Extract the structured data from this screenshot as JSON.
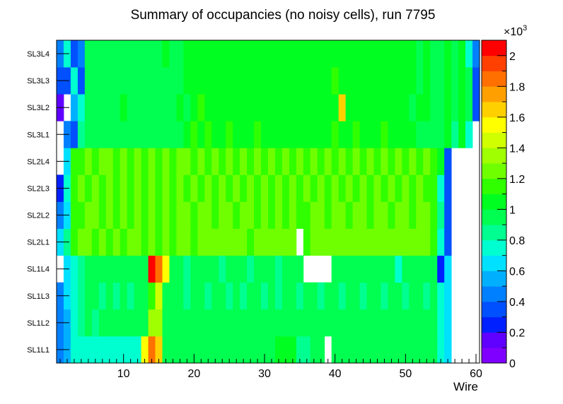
{
  "chart_data": {
    "type": "heatmap",
    "title": "Summary of occupancies (no noisy cells), run 7795",
    "xlabel": "Wire",
    "ylabel": "",
    "xlim": [
      0.5,
      60.5
    ],
    "x_ticks": [
      10,
      20,
      30,
      40,
      50,
      60
    ],
    "y_categories": [
      "SL1L1",
      "SL1L2",
      "SL1L3",
      "SL1L4",
      "SL2L1",
      "SL2L2",
      "SL2L3",
      "SL2L4",
      "SL3L1",
      "SL3L2",
      "SL3L3",
      "SL3L4"
    ],
    "z_range": [
      0,
      2100
    ],
    "colorbar": {
      "ticks": [
        0,
        200,
        400,
        600,
        800,
        1000,
        1200,
        1400,
        1600,
        1800,
        2000
      ],
      "tick_labels": [
        "0",
        "0.2",
        "0.4",
        "0.6",
        "0.8",
        "1",
        "1.2",
        "1.4",
        "1.6",
        "1.8",
        "2"
      ],
      "exponent_label": "×10",
      "exponent_power": "3",
      "palette": [
        "#8000ff",
        "#6000ff",
        "#0020ff",
        "#0050ff",
        "#0080ff",
        "#00b0ff",
        "#00e0ff",
        "#00ffd0",
        "#00ff90",
        "#00ff50",
        "#00ff20",
        "#30ff00",
        "#70ff00",
        "#a0ff00",
        "#d0ff00",
        "#ffff00",
        "#ffd000",
        "#ffa000",
        "#ff7000",
        "#ff4000",
        "#ff0000"
      ]
    },
    "rows": [
      {
        "layer": "SL1L1",
        "values": [
          450,
          550,
          700,
          780,
          780,
          780,
          780,
          780,
          780,
          780,
          780,
          780,
          1500,
          1850,
          1650,
          960,
          900,
          940,
          900,
          900,
          900,
          960,
          900,
          900,
          960,
          900,
          900,
          900,
          960,
          900,
          940,
          1000,
          1000,
          1040,
          820,
          820,
          900,
          960,
          0,
          900,
          900,
          900,
          940,
          900,
          940,
          900,
          940,
          900,
          960,
          900,
          940,
          940,
          960,
          960,
          700,
          600,
          0,
          0,
          0,
          0
        ]
      },
      {
        "layer": "SL1L2",
        "values": [
          450,
          550,
          700,
          850,
          900,
          850,
          900,
          900,
          900,
          900,
          900,
          900,
          900,
          1300,
          1350,
          960,
          900,
          900,
          900,
          960,
          900,
          900,
          900,
          960,
          900,
          900,
          900,
          960,
          900,
          900,
          900,
          960,
          900,
          960,
          900,
          900,
          900,
          900,
          900,
          900,
          900,
          900,
          900,
          900,
          900,
          900,
          900,
          900,
          900,
          940,
          900,
          900,
          900,
          920,
          700,
          650,
          0,
          0,
          0,
          0
        ]
      },
      {
        "layer": "SL1L3",
        "values": [
          450,
          600,
          700,
          850,
          900,
          900,
          880,
          900,
          880,
          900,
          880,
          900,
          900,
          1150,
          1400,
          900,
          900,
          900,
          880,
          900,
          900,
          880,
          900,
          900,
          880,
          900,
          880,
          900,
          900,
          880,
          900,
          880,
          900,
          900,
          880,
          900,
          900,
          880,
          900,
          900,
          880,
          900,
          900,
          880,
          900,
          900,
          880,
          900,
          900,
          880,
          900,
          900,
          880,
          900,
          700,
          650,
          0,
          0,
          0,
          0
        ]
      },
      {
        "layer": "SL1L4",
        "values": [
          0,
          600,
          700,
          850,
          900,
          900,
          900,
          900,
          900,
          900,
          900,
          900,
          900,
          2000,
          1800,
          1550,
          900,
          900,
          880,
          900,
          900,
          900,
          900,
          880,
          900,
          900,
          900,
          860,
          900,
          900,
          900,
          860,
          900,
          900,
          900,
          0,
          0,
          0,
          0,
          900,
          900,
          900,
          900,
          900,
          900,
          900,
          900,
          900,
          760,
          900,
          900,
          900,
          900,
          900,
          200,
          650,
          0,
          0,
          0,
          0
        ]
      },
      {
        "layer": "SL2L1",
        "values": [
          650,
          800,
          1150,
          1200,
          1200,
          1150,
          1200,
          1150,
          1200,
          1150,
          1200,
          1200,
          1150,
          1200,
          1150,
          1200,
          1150,
          1200,
          1200,
          1150,
          1200,
          1200,
          1200,
          1200,
          1200,
          1200,
          1200,
          1150,
          1200,
          1200,
          1200,
          1200,
          1200,
          1200,
          0,
          1100,
          1200,
          1200,
          1200,
          1200,
          1200,
          1200,
          1200,
          1200,
          1200,
          1200,
          1200,
          1200,
          1200,
          1200,
          1200,
          1200,
          1200,
          1150,
          700,
          300,
          0,
          0,
          0,
          0
        ]
      },
      {
        "layer": "SL2L2",
        "values": [
          450,
          650,
          1100,
          1150,
          1200,
          1200,
          1150,
          1200,
          1100,
          1200,
          1150,
          1200,
          1150,
          1200,
          1150,
          1200,
          1150,
          1200,
          1200,
          1150,
          1200,
          1200,
          1150,
          1200,
          1200,
          1150,
          1200,
          1200,
          1150,
          1200,
          1150,
          1200,
          1150,
          1200,
          1100,
          1150,
          1200,
          1200,
          1150,
          1200,
          1200,
          1150,
          1200,
          1200,
          1150,
          1200,
          1200,
          1150,
          1200,
          1200,
          1150,
          1200,
          1200,
          1150,
          800,
          300,
          0,
          0,
          0,
          0
        ]
      },
      {
        "layer": "SL2L3",
        "values": [
          200,
          700,
          1100,
          1200,
          1150,
          1200,
          1150,
          1200,
          1150,
          1200,
          1150,
          1200,
          1150,
          1200,
          1150,
          1200,
          1150,
          1200,
          1150,
          1200,
          1150,
          1200,
          1150,
          1200,
          1150,
          1200,
          1150,
          1200,
          1150,
          1200,
          1150,
          1200,
          1150,
          1200,
          1150,
          1200,
          1150,
          1200,
          1150,
          1200,
          1150,
          1200,
          1150,
          1200,
          1150,
          1200,
          1150,
          1200,
          1150,
          1200,
          1150,
          1200,
          1150,
          1100,
          700,
          300,
          0,
          0,
          0,
          0
        ]
      },
      {
        "layer": "SL2L4",
        "values": [
          0,
          600,
          1100,
          1150,
          1200,
          1150,
          1200,
          1200,
          1150,
          1200,
          1150,
          1200,
          1150,
          1200,
          1150,
          1200,
          1150,
          1200,
          1200,
          1150,
          1200,
          1150,
          1200,
          1150,
          1200,
          1150,
          1200,
          1150,
          1200,
          1150,
          1200,
          1150,
          1200,
          1150,
          1200,
          1150,
          1200,
          1150,
          1200,
          1150,
          1200,
          1150,
          1200,
          1150,
          1200,
          1150,
          1200,
          1150,
          1200,
          1150,
          1200,
          1150,
          1200,
          1150,
          1000,
          350,
          0,
          0,
          0,
          0
        ]
      },
      {
        "layer": "SL3L1",
        "values": [
          0,
          450,
          300,
          800,
          900,
          900,
          950,
          900,
          900,
          900,
          950,
          900,
          900,
          950,
          900,
          900,
          950,
          900,
          1000,
          1100,
          1000,
          1100,
          1000,
          1000,
          1100,
          1000,
          1000,
          1000,
          1100,
          1000,
          1000,
          1000,
          1000,
          1000,
          1000,
          1000,
          1000,
          1000,
          1000,
          1100,
          1000,
          1000,
          1100,
          1000,
          1000,
          1000,
          1100,
          1000,
          1000,
          1000,
          1000,
          900,
          900,
          900,
          900,
          1000,
          800,
          1000,
          700,
          0
        ]
      },
      {
        "layer": "SL3L2",
        "values": [
          150,
          0,
          500,
          700,
          900,
          900,
          950,
          900,
          900,
          1000,
          900,
          900,
          900,
          950,
          900,
          950,
          900,
          1000,
          950,
          1000,
          1100,
          1000,
          1000,
          1000,
          1000,
          1000,
          1000,
          1000,
          1000,
          1000,
          1000,
          1000,
          1000,
          1000,
          1000,
          1000,
          1000,
          1000,
          1000,
          1000,
          1600,
          1050,
          1000,
          1000,
          1000,
          1000,
          1000,
          1000,
          1000,
          1000,
          900,
          1000,
          1000,
          900,
          900,
          1000,
          900,
          1000,
          900,
          300
        ]
      },
      {
        "layer": "SL3L3",
        "values": [
          300,
          300,
          750,
          300,
          900,
          950,
          900,
          900,
          950,
          900,
          950,
          900,
          900,
          950,
          900,
          950,
          900,
          950,
          1000,
          1050,
          1000,
          1050,
          1000,
          1000,
          1050,
          1000,
          1000,
          1000,
          1050,
          1000,
          1050,
          1000,
          1000,
          1050,
          1000,
          1000,
          1050,
          1000,
          1000,
          1100,
          1000,
          1000,
          1050,
          1000,
          1000,
          1050,
          1000,
          1000,
          1050,
          1000,
          1000,
          950,
          1000,
          900,
          950,
          1000,
          900,
          1000,
          900,
          300
        ]
      },
      {
        "layer": "SL3L4",
        "values": [
          450,
          700,
          300,
          450,
          900,
          950,
          900,
          900,
          950,
          900,
          950,
          900,
          900,
          950,
          900,
          1000,
          900,
          950,
          1000,
          1050,
          1000,
          1000,
          1050,
          1000,
          1000,
          1050,
          1000,
          1000,
          1000,
          1050,
          1000,
          1050,
          1000,
          1000,
          1050,
          1000,
          1000,
          1050,
          1000,
          1050,
          1000,
          1000,
          1050,
          1000,
          1000,
          1050,
          1000,
          1000,
          1050,
          1000,
          1000,
          950,
          1000,
          900,
          950,
          1000,
          900,
          1000,
          700,
          450
        ]
      }
    ]
  }
}
